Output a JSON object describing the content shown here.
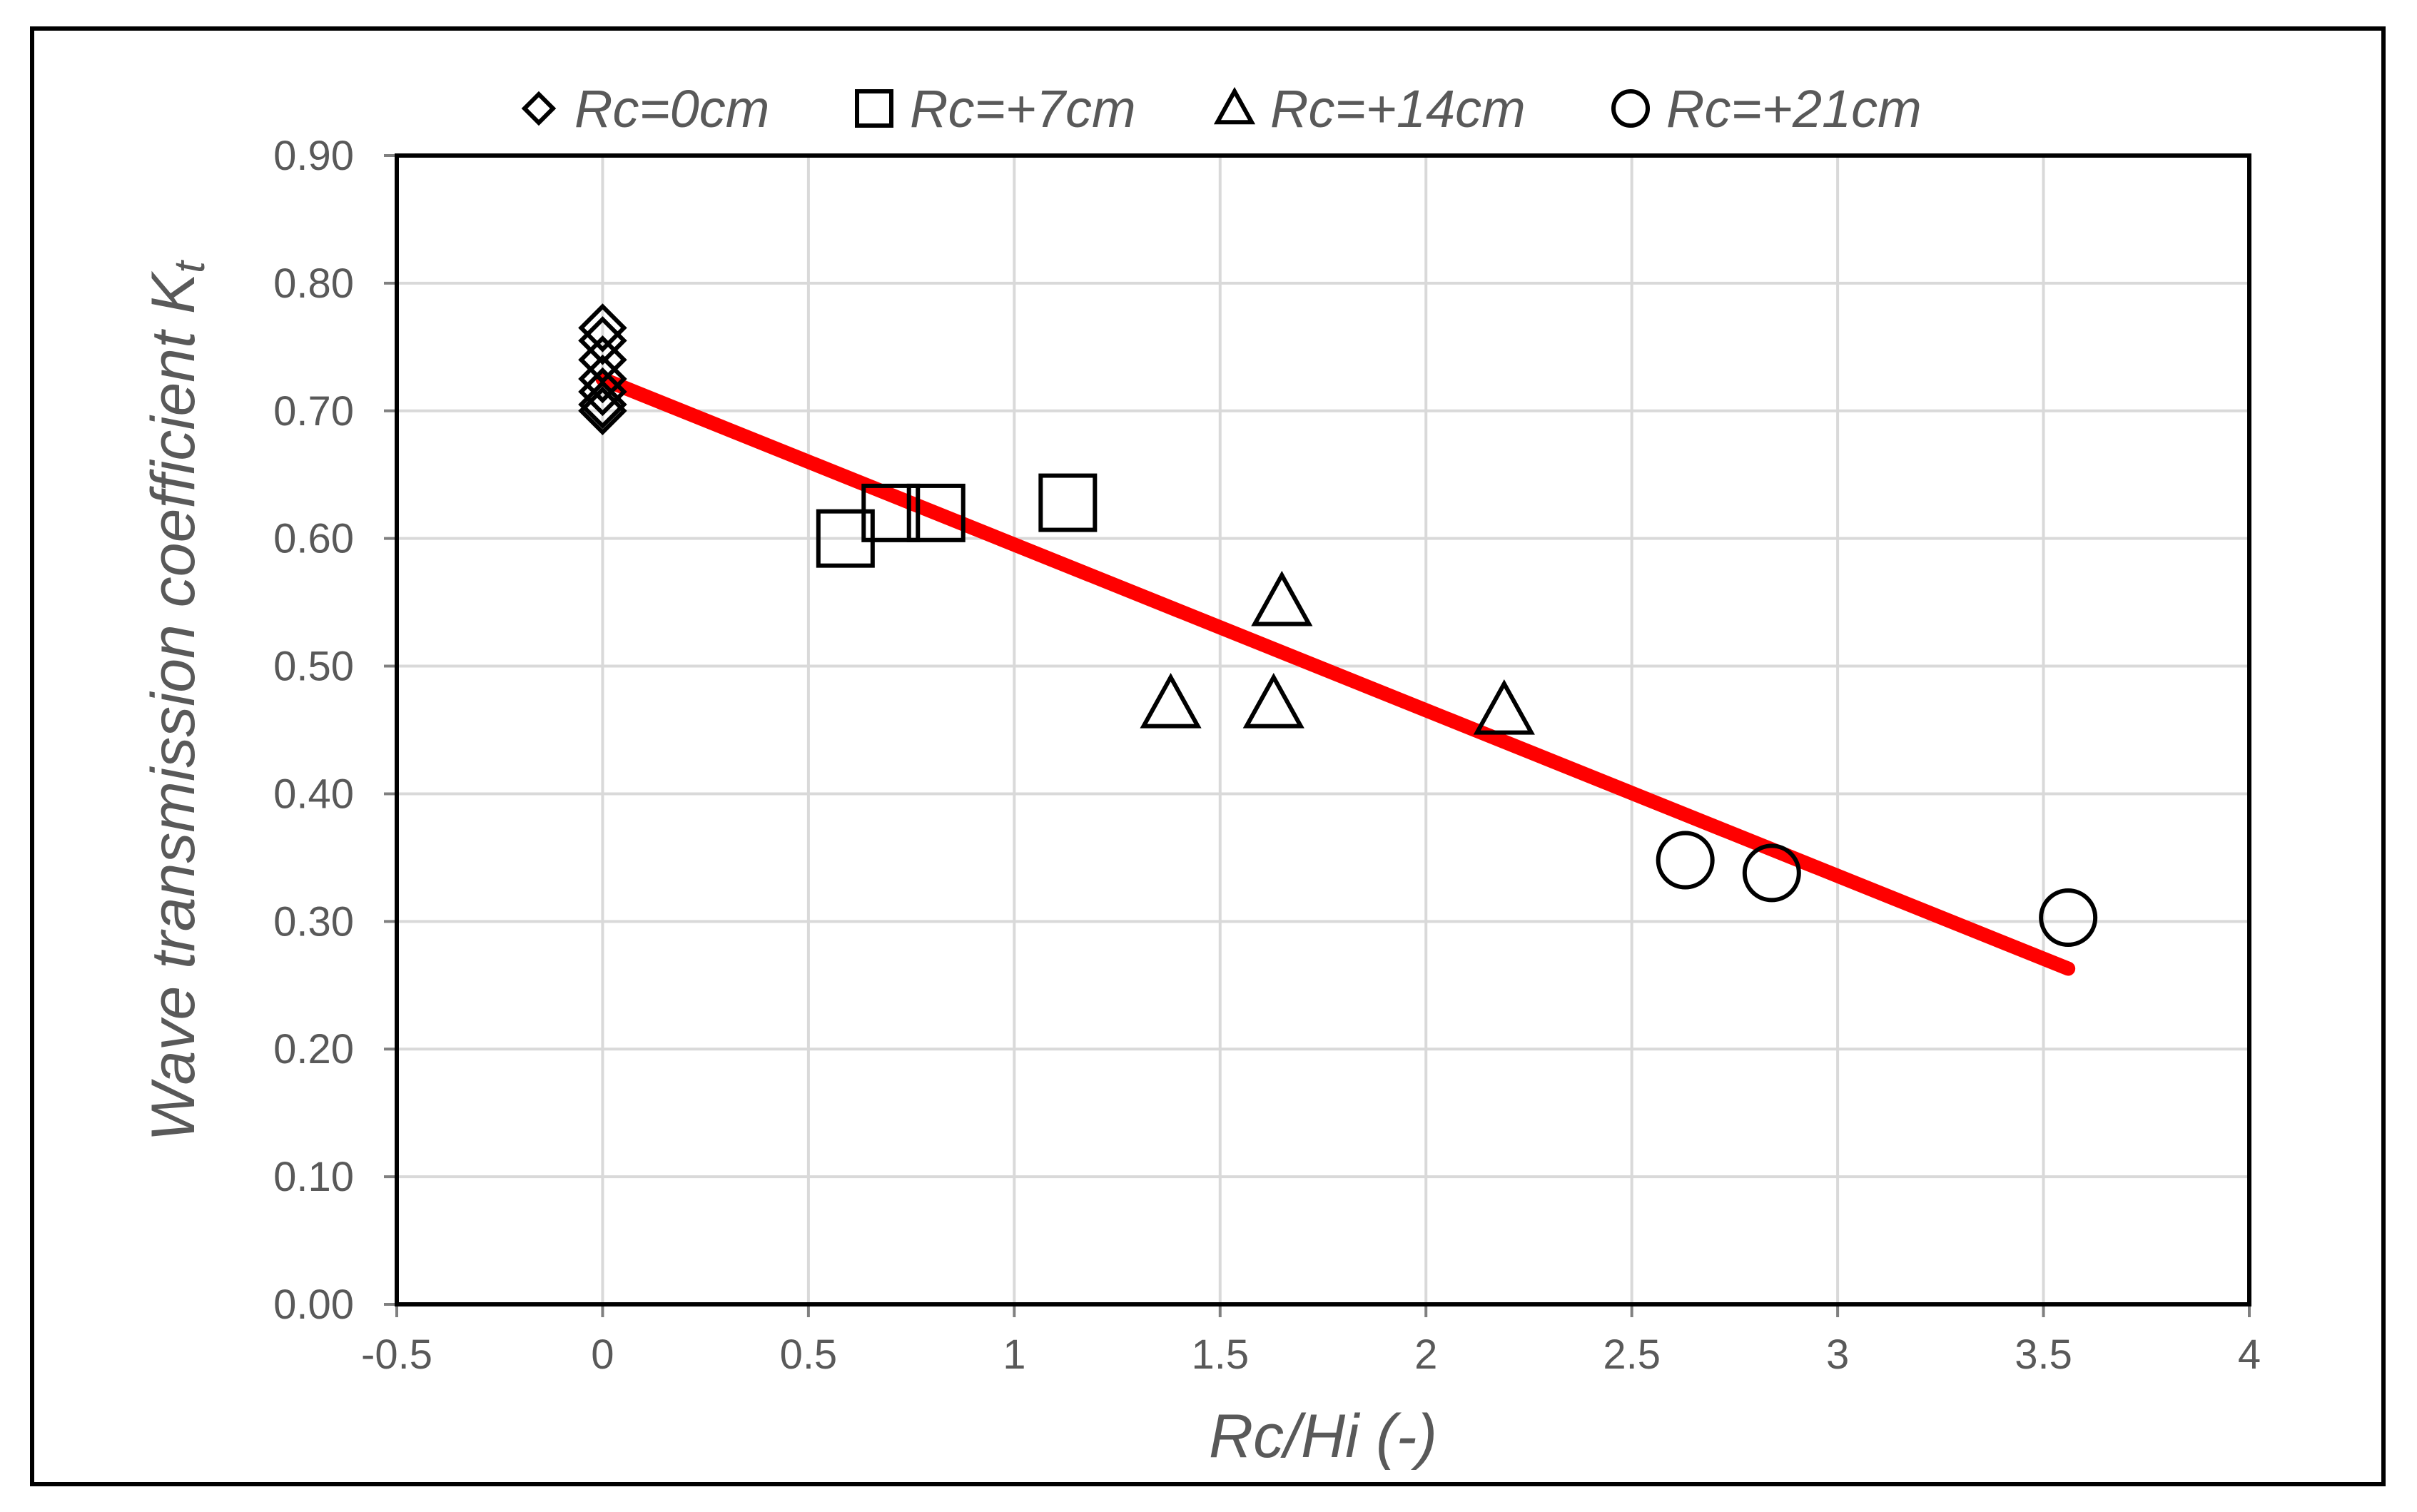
{
  "chart_data": {
    "type": "scatter",
    "title": "",
    "xlabel": "Rc/Hi (-)",
    "ylabel": "Wave transmission coefficient K",
    "ylabel_subscript": "t",
    "xlim": [
      -0.5,
      4
    ],
    "ylim": [
      0,
      0.9
    ],
    "x_ticks": [
      "-0.5",
      "0",
      "0.5",
      "1",
      "1.5",
      "2",
      "2.5",
      "3",
      "3.5",
      "4"
    ],
    "x_tick_values": [
      -0.5,
      0,
      0.5,
      1,
      1.5,
      2,
      2.5,
      3,
      3.5,
      4
    ],
    "y_ticks": [
      "0.00",
      "0.10",
      "0.20",
      "0.30",
      "0.40",
      "0.50",
      "0.60",
      "0.70",
      "0.80",
      "0.90"
    ],
    "y_tick_values": [
      0,
      0.1,
      0.2,
      0.3,
      0.4,
      0.5,
      0.6,
      0.7,
      0.8,
      0.9
    ],
    "grid": true,
    "legend_position": "top",
    "series": [
      {
        "name": "Rc=0cm",
        "marker": "diamond",
        "points": [
          [
            0,
            0.765
          ],
          [
            0,
            0.755
          ],
          [
            0,
            0.74
          ],
          [
            0,
            0.725
          ],
          [
            0,
            0.715
          ],
          [
            0,
            0.705
          ],
          [
            0,
            0.7
          ]
        ]
      },
      {
        "name": "Rc=+7cm",
        "marker": "square",
        "points": [
          [
            0.59,
            0.6
          ],
          [
            0.7,
            0.62
          ],
          [
            0.81,
            0.62
          ],
          [
            1.13,
            0.628
          ]
        ]
      },
      {
        "name": "Rc=+14cm",
        "marker": "triangle",
        "points": [
          [
            1.38,
            0.47
          ],
          [
            1.63,
            0.47
          ],
          [
            1.65,
            0.55
          ],
          [
            2.19,
            0.465
          ]
        ]
      },
      {
        "name": "Rc=+21cm",
        "marker": "circle",
        "points": [
          [
            2.63,
            0.348
          ],
          [
            2.84,
            0.338
          ],
          [
            3.56,
            0.303
          ]
        ]
      }
    ],
    "trendline": {
      "color": "#ff0000",
      "points": [
        [
          0,
          0.725
        ],
        [
          3.56,
          0.263
        ]
      ]
    },
    "colors": {
      "marker_stroke": "#000000",
      "grid": "#d9d9d9",
      "text": "#595959",
      "trendline": "#ff0000"
    }
  }
}
